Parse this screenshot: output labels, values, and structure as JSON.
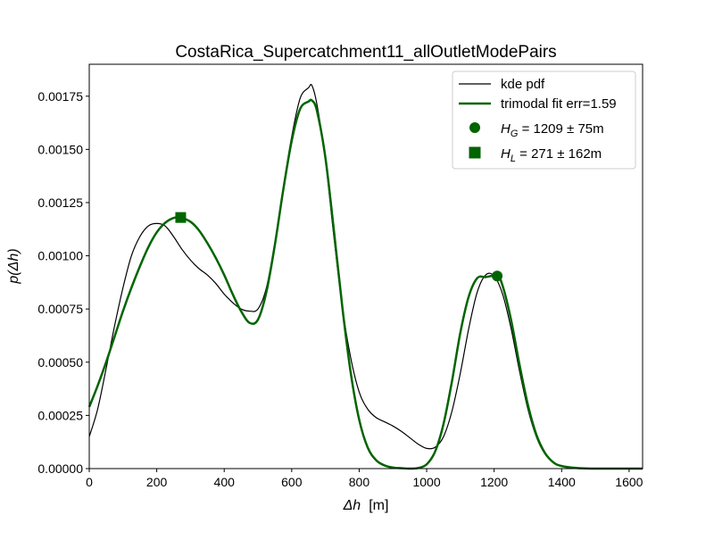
{
  "chart_data": {
    "type": "line",
    "title": "CostaRica_Supercatchment11_allOutletModePairs",
    "xlabel_symbol": "Δh",
    "xlabel_unit": "[m]",
    "ylabel": "p(Δh)",
    "xlim": [
      0,
      1640
    ],
    "ylim": [
      0,
      0.0019
    ],
    "x_ticks": [
      0,
      200,
      400,
      600,
      800,
      1000,
      1200,
      1400,
      1600
    ],
    "x_tick_labels": [
      "0",
      "200",
      "400",
      "600",
      "800",
      "1000",
      "1200",
      "1400",
      "1600"
    ],
    "y_ticks": [
      0,
      0.00025,
      0.0005,
      0.00075,
      0.001,
      0.00125,
      0.0015,
      0.00175
    ],
    "y_tick_labels": [
      "0.00000",
      "0.00025",
      "0.00050",
      "0.00075",
      "0.00100",
      "0.00125",
      "0.00150",
      "0.00175"
    ],
    "grid": false,
    "legend_position": "top-right",
    "series": [
      {
        "name": "kde pdf",
        "color": "#000000",
        "x": [
          0,
          25,
          50,
          75,
          100,
          125,
          150,
          175,
          200,
          225,
          250,
          275,
          300,
          325,
          350,
          375,
          400,
          425,
          450,
          475,
          500,
          525,
          550,
          575,
          600,
          625,
          650,
          660,
          675,
          700,
          725,
          750,
          775,
          800,
          825,
          850,
          875,
          900,
          925,
          950,
          975,
          1000,
          1025,
          1050,
          1075,
          1100,
          1125,
          1150,
          1175,
          1200,
          1225,
          1250,
          1275,
          1300,
          1325,
          1350,
          1375,
          1400,
          1450,
          1500,
          1550,
          1640
        ],
        "y": [
          0.00015,
          0.00028,
          0.00047,
          0.00067,
          0.00085,
          0.001,
          0.00109,
          0.00114,
          0.001152,
          0.00114,
          0.00109,
          0.00103,
          0.00098,
          0.00094,
          0.00091,
          0.00087,
          0.00082,
          0.00078,
          0.00075,
          0.00074,
          0.00075,
          0.00085,
          0.00106,
          0.00132,
          0.00156,
          0.00174,
          0.00179,
          0.0018,
          0.00171,
          0.00145,
          0.00109,
          0.00076,
          0.00052,
          0.00036,
          0.00028,
          0.00024,
          0.00022,
          0.0002,
          0.000175,
          0.000145,
          0.000115,
          9.5e-05,
          0.0001,
          0.00015,
          0.00027,
          0.00045,
          0.00066,
          0.00083,
          0.00091,
          0.000905,
          0.00082,
          0.00066,
          0.00046,
          0.00028,
          0.00015,
          7e-05,
          3e-05,
          1.2e-05,
          3e-06,
          1e-06,
          0,
          0
        ]
      },
      {
        "name": "trimodal fit err=1.59",
        "color": "#006400",
        "x": [
          0,
          25,
          50,
          75,
          100,
          125,
          150,
          175,
          200,
          225,
          250,
          270,
          300,
          325,
          350,
          375,
          400,
          425,
          450,
          475,
          500,
          525,
          550,
          575,
          600,
          625,
          650,
          660,
          675,
          700,
          725,
          750,
          775,
          800,
          825,
          850,
          875,
          900,
          925,
          950,
          975,
          1000,
          1025,
          1050,
          1075,
          1100,
          1125,
          1150,
          1175,
          1209,
          1225,
          1250,
          1275,
          1300,
          1325,
          1350,
          1375,
          1400,
          1450,
          1500,
          1550,
          1640
        ],
        "y": [
          0.00029,
          0.00039,
          0.0005,
          0.00062,
          0.00074,
          0.00085,
          0.00095,
          0.00104,
          0.00111,
          0.001155,
          0.001178,
          0.00118,
          0.00116,
          0.00112,
          0.00106,
          0.00099,
          0.00091,
          0.00082,
          0.00074,
          0.000685,
          0.0007,
          0.00083,
          0.00105,
          0.00131,
          0.00154,
          0.00169,
          0.001725,
          0.00173,
          0.00168,
          0.00146,
          0.00112,
          0.00076,
          0.00045,
          0.00023,
          0.0001,
          4e-05,
          1.5e-05,
          5e-06,
          2e-06,
          0,
          3e-06,
          2e-05,
          8e-05,
          0.00021,
          0.00041,
          0.00064,
          0.00081,
          0.000895,
          0.0009,
          0.000905,
          0.00086,
          0.0007,
          0.00049,
          0.0003,
          0.00016,
          7.5e-05,
          3e-05,
          1.2e-05,
          2e-06,
          0,
          0,
          0
        ]
      }
    ],
    "markers": [
      {
        "name": "H_G",
        "shape": "circle",
        "x": 1209,
        "y": 0.000905,
        "color": "#006400",
        "legend_main": "H",
        "legend_sub": "G",
        "legend_rest": " = 1209 ± 75m"
      },
      {
        "name": "H_L",
        "shape": "square",
        "x": 271,
        "y": 0.00118,
        "color": "#006400",
        "legend_main": "H",
        "legend_sub": "L",
        "legend_rest": " = 271 ± 162m"
      }
    ]
  }
}
